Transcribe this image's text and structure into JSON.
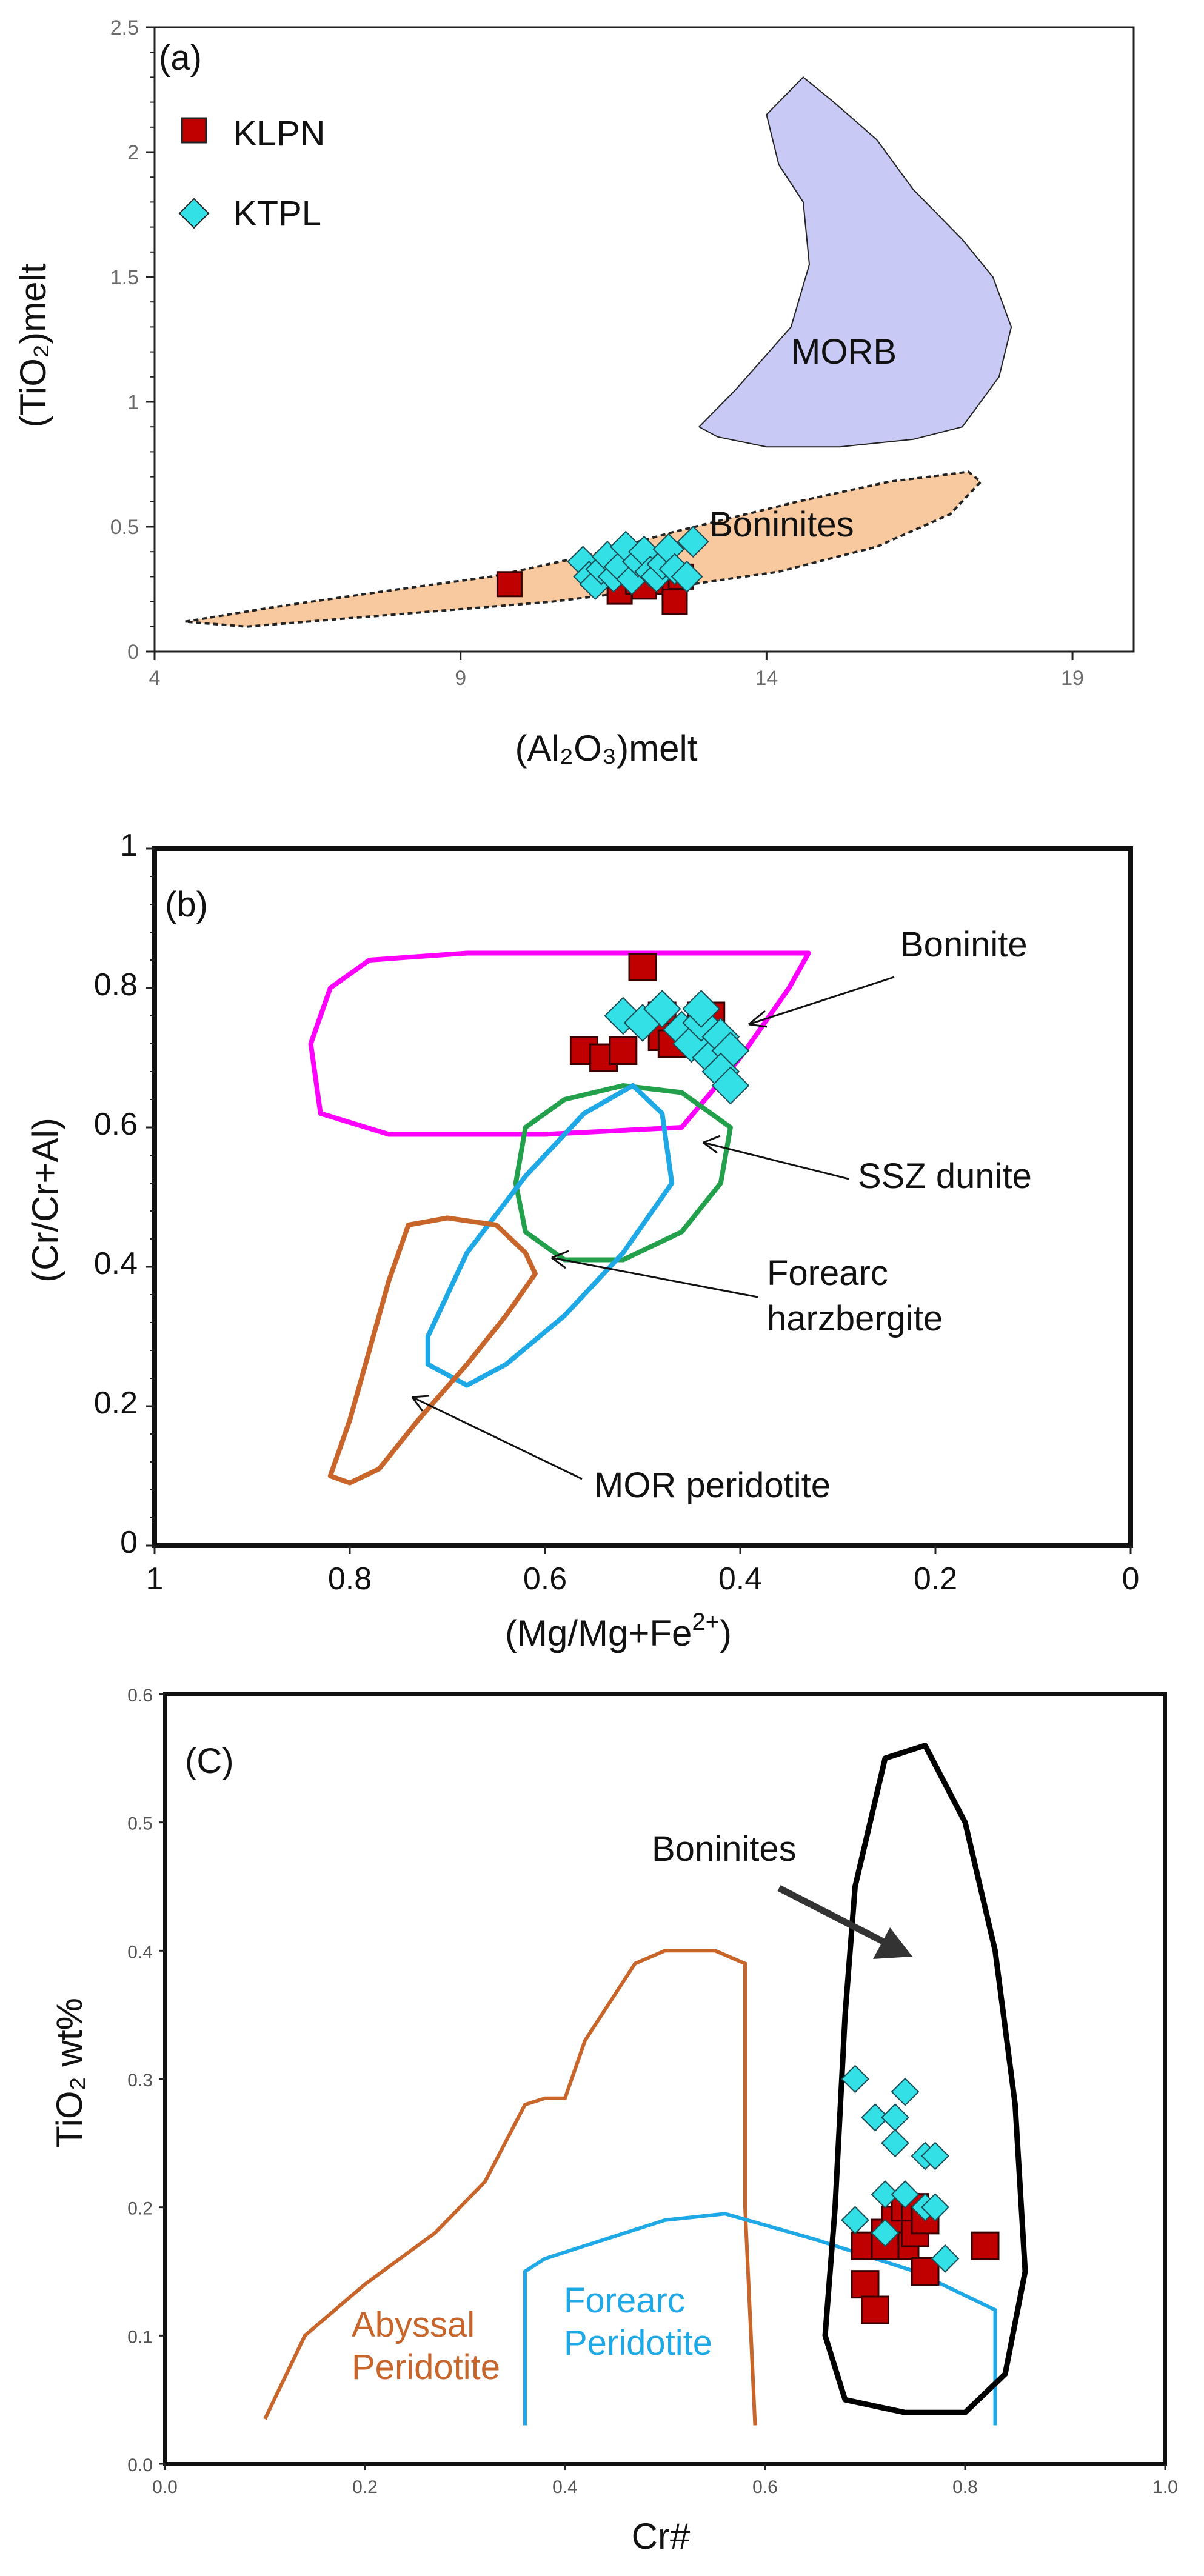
{
  "chart_data": [
    {
      "type": "scatter",
      "panel": "(a)",
      "xlabel": "(Al₂O₃)melt",
      "ylabel": "(TiO₂)melt",
      "xlim": [
        4,
        20
      ],
      "ylim": [
        0,
        2.5
      ],
      "xticks": [
        "4",
        "9",
        "14",
        "19"
      ],
      "yticks": [
        "0",
        "0.5",
        "1",
        "1.5",
        "2",
        "2.5"
      ],
      "legend": [
        "KLPN",
        "KTPL"
      ],
      "fields": [
        {
          "name": "MORB",
          "color": "#c9c9f5",
          "polygon": [
            [
              12.9,
              0.9
            ],
            [
              13.5,
              1.05
            ],
            [
              14.4,
              1.3
            ],
            [
              14.7,
              1.55
            ],
            [
              14.6,
              1.8
            ],
            [
              14.2,
              1.95
            ],
            [
              14.0,
              2.15
            ],
            [
              14.6,
              2.3
            ],
            [
              15.1,
              2.2
            ],
            [
              15.8,
              2.05
            ],
            [
              16.4,
              1.85
            ],
            [
              17.2,
              1.65
            ],
            [
              17.7,
              1.5
            ],
            [
              18.0,
              1.3
            ],
            [
              17.8,
              1.1
            ],
            [
              17.2,
              0.9
            ],
            [
              16.4,
              0.85
            ],
            [
              15.2,
              0.82
            ],
            [
              14.0,
              0.82
            ],
            [
              13.2,
              0.86
            ],
            [
              12.9,
              0.9
            ]
          ]
        },
        {
          "name": "Boninites",
          "color": "#f8c89f",
          "polygon": [
            [
              4.5,
              0.12
            ],
            [
              6.0,
              0.18
            ],
            [
              8.0,
              0.25
            ],
            [
              9.5,
              0.3
            ],
            [
              11.0,
              0.38
            ],
            [
              12.5,
              0.48
            ],
            [
              14.5,
              0.6
            ],
            [
              16.0,
              0.68
            ],
            [
              17.3,
              0.72
            ],
            [
              17.5,
              0.68
            ],
            [
              17.0,
              0.55
            ],
            [
              15.8,
              0.42
            ],
            [
              14.2,
              0.32
            ],
            [
              12.5,
              0.26
            ],
            [
              10.5,
              0.2
            ],
            [
              8.0,
              0.15
            ],
            [
              5.5,
              0.1
            ],
            [
              4.5,
              0.12
            ]
          ]
        }
      ],
      "series": [
        {
          "name": "KLPN",
          "marker": "square",
          "color": "#c00000",
          "points": [
            [
              9.8,
              0.27
            ],
            [
              11.6,
              0.24
            ],
            [
              11.9,
              0.28
            ],
            [
              12.0,
              0.26
            ],
            [
              12.4,
              0.28
            ],
            [
              12.5,
              0.25
            ],
            [
              12.5,
              0.2
            ],
            [
              12.6,
              0.3
            ]
          ]
        },
        {
          "name": "KTPL",
          "marker": "diamond",
          "color": "#33e0e6",
          "points": [
            [
              11.0,
              0.36
            ],
            [
              11.1,
              0.3
            ],
            [
              11.2,
              0.27
            ],
            [
              11.3,
              0.33
            ],
            [
              11.4,
              0.38
            ],
            [
              11.5,
              0.3
            ],
            [
              11.6,
              0.34
            ],
            [
              11.7,
              0.42
            ],
            [
              11.8,
              0.29
            ],
            [
              11.9,
              0.36
            ],
            [
              12.0,
              0.4
            ],
            [
              12.1,
              0.32
            ],
            [
              12.2,
              0.3
            ],
            [
              12.3,
              0.35
            ],
            [
              12.4,
              0.41
            ],
            [
              12.5,
              0.33
            ],
            [
              12.7,
              0.3
            ],
            [
              12.8,
              0.44
            ]
          ]
        }
      ]
    },
    {
      "type": "scatter",
      "panel": "(b)",
      "xlabel": "(Mg/Mg+Fe",
      "xlabel_sup": "2+",
      "xlabel_end": ")",
      "ylabel": "(Cr/Cr+Al)",
      "xlim": [
        1,
        0
      ],
      "ylim": [
        0,
        1
      ],
      "xticks": [
        "1",
        "0.8",
        "0.6",
        "0.4",
        "0.2",
        "0"
      ],
      "yticks": [
        "0",
        "0.2",
        "0.4",
        "0.6",
        "0.8",
        "1"
      ],
      "fields": [
        {
          "name": "Boninite",
          "color": "#ff00ff",
          "polygon": [
            [
              0.82,
              0.8
            ],
            [
              0.78,
              0.84
            ],
            [
              0.68,
              0.85
            ],
            [
              0.5,
              0.85
            ],
            [
              0.33,
              0.85
            ],
            [
              0.35,
              0.8
            ],
            [
              0.4,
              0.7
            ],
            [
              0.46,
              0.6
            ],
            [
              0.6,
              0.59
            ],
            [
              0.76,
              0.59
            ],
            [
              0.83,
              0.62
            ],
            [
              0.84,
              0.72
            ],
            [
              0.82,
              0.8
            ]
          ]
        },
        {
          "name": "SSZ dunite",
          "color": "#22a04b",
          "polygon": [
            [
              0.62,
              0.6
            ],
            [
              0.58,
              0.64
            ],
            [
              0.52,
              0.66
            ],
            [
              0.46,
              0.65
            ],
            [
              0.41,
              0.6
            ],
            [
              0.42,
              0.52
            ],
            [
              0.46,
              0.45
            ],
            [
              0.52,
              0.41
            ],
            [
              0.58,
              0.41
            ],
            [
              0.62,
              0.45
            ],
            [
              0.63,
              0.52
            ],
            [
              0.62,
              0.6
            ]
          ]
        },
        {
          "name": "Forearc harzbergite",
          "color": "#1ea8e6",
          "polygon": [
            [
              0.72,
              0.3
            ],
            [
              0.68,
              0.42
            ],
            [
              0.62,
              0.53
            ],
            [
              0.56,
              0.62
            ],
            [
              0.51,
              0.66
            ],
            [
              0.48,
              0.62
            ],
            [
              0.47,
              0.52
            ],
            [
              0.52,
              0.42
            ],
            [
              0.58,
              0.33
            ],
            [
              0.64,
              0.26
            ],
            [
              0.68,
              0.23
            ],
            [
              0.72,
              0.26
            ],
            [
              0.72,
              0.3
            ]
          ]
        },
        {
          "name": "MOR peridotite",
          "color": "#c8652a",
          "polygon": [
            [
              0.82,
              0.1
            ],
            [
              0.8,
              0.18
            ],
            [
              0.78,
              0.28
            ],
            [
              0.76,
              0.38
            ],
            [
              0.74,
              0.46
            ],
            [
              0.7,
              0.47
            ],
            [
              0.65,
              0.46
            ],
            [
              0.62,
              0.42
            ],
            [
              0.61,
              0.39
            ],
            [
              0.64,
              0.33
            ],
            [
              0.68,
              0.26
            ],
            [
              0.73,
              0.18
            ],
            [
              0.77,
              0.11
            ],
            [
              0.8,
              0.09
            ],
            [
              0.82,
              0.1
            ]
          ]
        }
      ],
      "annotations": [
        "Boninite",
        "SSZ dunite",
        "Forearc",
        "harzbergite",
        "MOR peridotite"
      ],
      "series": [
        {
          "name": "KLPN",
          "marker": "square",
          "color": "#c00000",
          "points": [
            [
              0.5,
              0.83
            ],
            [
              0.56,
              0.71
            ],
            [
              0.54,
              0.7
            ],
            [
              0.52,
              0.71
            ],
            [
              0.48,
              0.76
            ],
            [
              0.48,
              0.73
            ],
            [
              0.47,
              0.72
            ],
            [
              0.44,
              0.76
            ],
            [
              0.43,
              0.76
            ],
            [
              0.43,
              0.73
            ]
          ]
        },
        {
          "name": "KTPL",
          "marker": "diamond",
          "color": "#33e0e6",
          "points": [
            [
              0.52,
              0.76
            ],
            [
              0.5,
              0.75
            ],
            [
              0.48,
              0.77
            ],
            [
              0.46,
              0.74
            ],
            [
              0.45,
              0.72
            ],
            [
              0.44,
              0.75
            ],
            [
              0.43,
              0.7
            ],
            [
              0.42,
              0.73
            ],
            [
              0.41,
              0.71
            ],
            [
              0.42,
              0.68
            ],
            [
              0.44,
              0.77
            ],
            [
              0.41,
              0.66
            ]
          ]
        }
      ]
    },
    {
      "type": "scatter",
      "panel": "(C)",
      "xlabel": "Cr#",
      "ylabel": "TiO₂ wt%",
      "xlim": [
        0,
        1
      ],
      "ylim": [
        0,
        0.6
      ],
      "xticks": [
        "0.0",
        "0.2",
        "0.4",
        "0.6",
        "0.8",
        "1.0"
      ],
      "yticks": [
        "0.0",
        "0.1",
        "0.2",
        "0.3",
        "0.4",
        "0.5",
        "0.6"
      ],
      "fields": [
        {
          "name": "Abyssal Peridotite",
          "label_lines": [
            "Abyssal",
            "Peridotite"
          ],
          "color": "#c8652a",
          "polyline": [
            [
              0.1,
              0.035
            ],
            [
              0.14,
              0.1
            ],
            [
              0.2,
              0.14
            ],
            [
              0.27,
              0.18
            ],
            [
              0.32,
              0.22
            ],
            [
              0.36,
              0.28
            ],
            [
              0.38,
              0.285
            ],
            [
              0.4,
              0.285
            ],
            [
              0.42,
              0.33
            ],
            [
              0.47,
              0.39
            ],
            [
              0.5,
              0.4
            ],
            [
              0.55,
              0.4
            ],
            [
              0.58,
              0.39
            ],
            [
              0.58,
              0.2
            ],
            [
              0.59,
              0.03
            ]
          ]
        },
        {
          "name": "Forearc Peridotite",
          "label_lines": [
            "Forearc",
            "Peridotite"
          ],
          "color": "#1ea8e6",
          "polyline": [
            [
              0.36,
              0.03
            ],
            [
              0.36,
              0.15
            ],
            [
              0.38,
              0.16
            ],
            [
              0.5,
              0.19
            ],
            [
              0.56,
              0.195
            ],
            [
              0.65,
              0.175
            ],
            [
              0.75,
              0.15
            ],
            [
              0.83,
              0.12
            ],
            [
              0.83,
              0.03
            ]
          ]
        },
        {
          "name": "Boninites",
          "color": "#000000",
          "polygon": [
            [
              0.76,
              0.56
            ],
            [
              0.72,
              0.55
            ],
            [
              0.69,
              0.45
            ],
            [
              0.68,
              0.35
            ],
            [
              0.67,
              0.2
            ],
            [
              0.66,
              0.1
            ],
            [
              0.68,
              0.05
            ],
            [
              0.74,
              0.04
            ],
            [
              0.8,
              0.04
            ],
            [
              0.84,
              0.07
            ],
            [
              0.86,
              0.15
            ],
            [
              0.85,
              0.28
            ],
            [
              0.83,
              0.4
            ],
            [
              0.8,
              0.5
            ],
            [
              0.76,
              0.56
            ]
          ]
        }
      ],
      "annotations": [
        "Boninites"
      ],
      "series": [
        {
          "name": "KLPN",
          "marker": "square",
          "color": "#c00000",
          "points": [
            [
              0.7,
              0.17
            ],
            [
              0.7,
              0.14
            ],
            [
              0.71,
              0.12
            ],
            [
              0.72,
              0.18
            ],
            [
              0.73,
              0.19
            ],
            [
              0.74,
              0.2
            ],
            [
              0.74,
              0.17
            ],
            [
              0.75,
              0.18
            ],
            [
              0.75,
              0.2
            ],
            [
              0.76,
              0.19
            ],
            [
              0.76,
              0.15
            ],
            [
              0.82,
              0.17
            ],
            [
              0.72,
              0.17
            ]
          ]
        },
        {
          "name": "KTPL",
          "marker": "diamond",
          "color": "#33e0e6",
          "points": [
            [
              0.69,
              0.3
            ],
            [
              0.71,
              0.27
            ],
            [
              0.73,
              0.27
            ],
            [
              0.74,
              0.29
            ],
            [
              0.73,
              0.25
            ],
            [
              0.76,
              0.24
            ],
            [
              0.77,
              0.24
            ],
            [
              0.72,
              0.21
            ],
            [
              0.74,
              0.21
            ],
            [
              0.76,
              0.2
            ],
            [
              0.77,
              0.2
            ],
            [
              0.69,
              0.19
            ],
            [
              0.72,
              0.18
            ],
            [
              0.78,
              0.16
            ]
          ]
        }
      ]
    }
  ]
}
